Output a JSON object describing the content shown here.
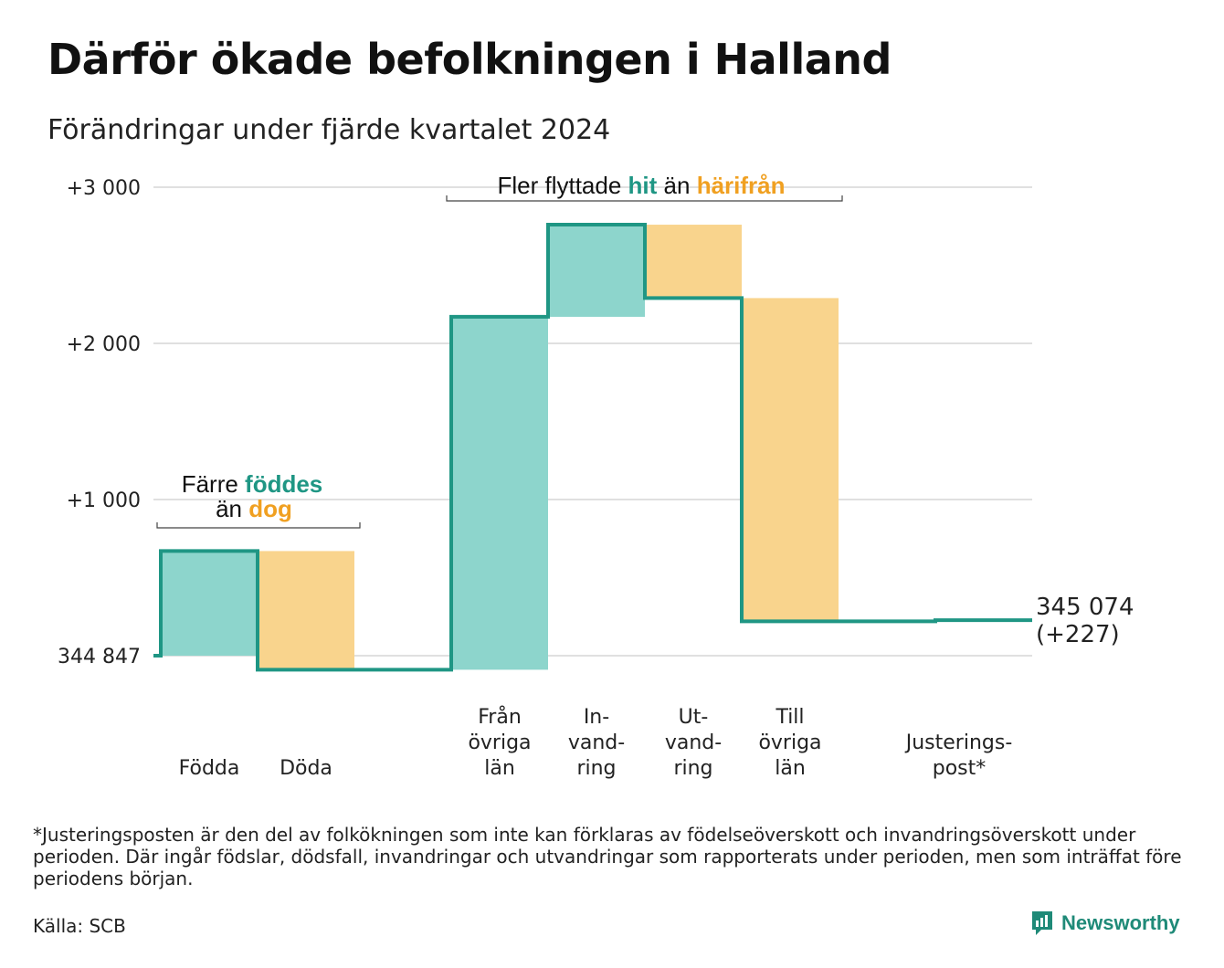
{
  "title": "Därför ökade befolkningen i Halland",
  "subtitle": "Förändringar under fjärde kvartalet 2024",
  "colors": {
    "in": "#8dd5cc",
    "out": "#f9d48d",
    "line": "#1f9684",
    "accent_in": "#1f9684",
    "accent_out": "#f0a021",
    "grid": "#e0e0e0"
  },
  "chart_data": {
    "type": "waterfall",
    "start_value": 344847,
    "end_label": "345 074",
    "end_change_label": "(+227)",
    "y_tick_labels": [
      "344 847",
      "+1 000",
      "+2 000",
      "+3 000"
    ],
    "y_ticks": [
      0,
      1000,
      2000,
      3000
    ],
    "ylim": [
      -120,
      3200
    ],
    "steps": [
      {
        "label": [
          "Födda"
        ],
        "change": 670,
        "kind": "in"
      },
      {
        "label": [
          "Döda"
        ],
        "change": -760,
        "kind": "out"
      },
      {
        "label": [
          "Från",
          "övriga",
          "län"
        ],
        "change": 2260,
        "kind": "in"
      },
      {
        "label": [
          "In-",
          "vand-",
          "ring"
        ],
        "change": 590,
        "kind": "in"
      },
      {
        "label": [
          "Ut-",
          "vand-",
          "ring"
        ],
        "change": -470,
        "kind": "out"
      },
      {
        "label": [
          "Till",
          "övriga",
          "län"
        ],
        "change": -2070,
        "kind": "out"
      },
      {
        "label": [
          "Justerings-",
          "post*"
        ],
        "change": 7,
        "kind": "adjustment"
      }
    ],
    "annotations": [
      {
        "parts": [
          "Färre ",
          "föddes"
        ],
        "parts2": [
          "än ",
          "dog"
        ]
      },
      {
        "parts": [
          "Fler flyttade ",
          "hit",
          " än ",
          "härifrån"
        ]
      }
    ],
    "grid": true
  },
  "footnote": "*Justeringsposten är den del av folkökningen som inte kan förklaras av födelseöverskott och invandringsöverskott under perioden. Där ingår födslar, dödsfall, invandringar och utvandringar som rapporterats under perioden, men som inträffat före periodens början.",
  "source": "Källa: SCB",
  "brand": "Newsworthy",
  "brand_icon": "newsworthy-logo-icon"
}
